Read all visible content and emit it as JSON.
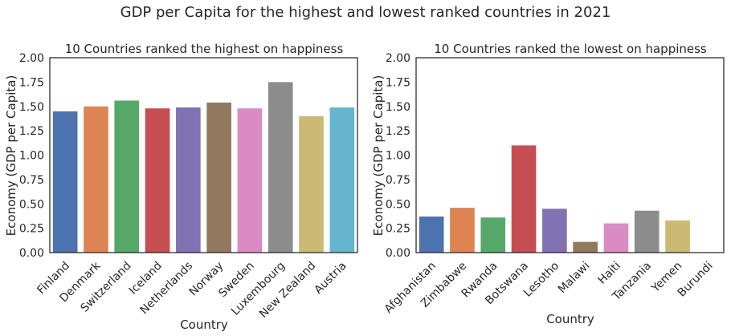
{
  "figure": {
    "suptitle": "GDP per Capita for the highest and lowest ranked countries in 2021"
  },
  "chart_data": [
    {
      "type": "bar",
      "title": "10 Countries ranked the highest on happiness",
      "xlabel": "Country",
      "ylabel": "Economy (GDP per Capita)",
      "ylim": [
        0,
        2.0
      ],
      "yticks": [
        "0.00",
        "0.25",
        "0.50",
        "0.75",
        "1.00",
        "1.25",
        "1.50",
        "1.75",
        "2.00"
      ],
      "grid": false,
      "categories": [
        "Finland",
        "Denmark",
        "Switzerland",
        "Iceland",
        "Netherlands",
        "Norway",
        "Sweden",
        "Luxembourg",
        "New Zealand",
        "Austria"
      ],
      "values": [
        1.45,
        1.5,
        1.56,
        1.48,
        1.49,
        1.54,
        1.48,
        1.75,
        1.4,
        1.49
      ],
      "colors": [
        "#4c72b0",
        "#dd8452",
        "#55a868",
        "#c44e52",
        "#8172b3",
        "#937860",
        "#da8bc3",
        "#8c8c8c",
        "#ccb974",
        "#64b5cd"
      ]
    },
    {
      "type": "bar",
      "title": "10 Countries ranked the lowest on happiness",
      "xlabel": "Country",
      "ylabel": "Economy (GDP per Capita)",
      "ylim": [
        0,
        2.0
      ],
      "yticks": [
        "0.00",
        "0.25",
        "0.50",
        "0.75",
        "1.00",
        "1.25",
        "1.50",
        "1.75",
        "2.00"
      ],
      "grid": false,
      "categories": [
        "Afghanistan",
        "Zimbabwe",
        "Rwanda",
        "Botswana",
        "Lesotho",
        "Malawi",
        "Haiti",
        "Tanzania",
        "Yemen",
        "Burundi"
      ],
      "values": [
        0.37,
        0.46,
        0.36,
        1.1,
        0.45,
        0.11,
        0.3,
        0.43,
        0.33,
        0.0
      ],
      "colors": [
        "#4c72b0",
        "#dd8452",
        "#55a868",
        "#c44e52",
        "#8172b3",
        "#937860",
        "#da8bc3",
        "#8c8c8c",
        "#ccb974",
        "#64b5cd"
      ]
    }
  ]
}
